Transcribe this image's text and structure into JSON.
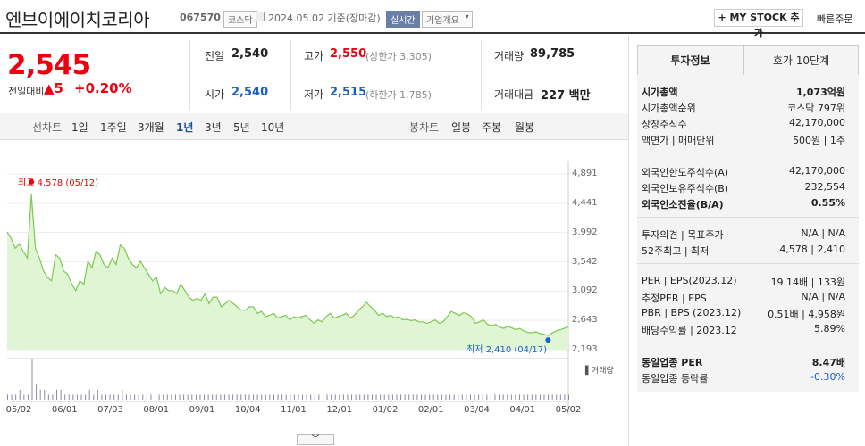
{
  "header": {
    "company": "엔브이에이치코리아",
    "code": "067570",
    "market_tag": "코스닥",
    "date_text": "2024.05.02  기준(장마감)",
    "realtime_tag": "실시간",
    "company_info_tag": "기업개요",
    "my_stock_button": "+ MY STOCK 추가",
    "quick_order": "빠른주문"
  },
  "quote": {
    "price": "2,545",
    "change_label": "전일대비",
    "change_amount": "5",
    "change_pct": "+0.20%",
    "prev_label": "전일",
    "prev_value": "2,540",
    "open_label": "시가",
    "open_value": "2,540",
    "high_label": "고가",
    "high_value": "2,550",
    "upper_limit": "(상한가 3,305)",
    "low_label": "저가",
    "low_value": "2,515",
    "lower_limit": "(하한가 1,785)",
    "volume_label": "거래량",
    "volume_value": "89,785",
    "amount_label": "거래대금",
    "amount_value": "227 백만"
  },
  "periods": {
    "line_label": "선차트",
    "line_items": [
      "1일",
      "1주일",
      "3개월",
      "1년",
      "3년",
      "5년",
      "10년"
    ],
    "active": "1년",
    "candle_label": "봉차트",
    "candle_items": [
      "일봉",
      "주봉",
      "월봉"
    ]
  },
  "chart_data": {
    "type": "area",
    "y_ticks": [
      "4,891",
      "4,441",
      "3,992",
      "3,542",
      "3,092",
      "2,643",
      "2,193"
    ],
    "ylim": [
      2193,
      4891
    ],
    "x_ticks": [
      "05/02",
      "06/01",
      "07/03",
      "08/01",
      "09/01",
      "10/04",
      "11/01",
      "12/01",
      "01/02",
      "02/01",
      "03/04",
      "04/01",
      "05/02"
    ],
    "series": [
      {
        "values": [
          4000,
          3900,
          3750,
          3820,
          3700,
          3600,
          4578,
          3750,
          3600,
          3400,
          3300,
          3250,
          3650,
          3600,
          3400,
          3350,
          3200,
          3100,
          3250,
          3200,
          3550,
          3450,
          3700,
          3650,
          3500,
          3450,
          3600,
          3500,
          3800,
          3750,
          3600,
          3500,
          3450,
          3550,
          3450,
          3350,
          3250,
          3300,
          3050,
          3150,
          3100,
          3100,
          3050,
          3200,
          3100,
          3000,
          2950,
          2980,
          2950,
          3050,
          2900,
          3000,
          3000,
          2850,
          2900,
          2950,
          2900,
          2850,
          2800,
          2800,
          2850,
          2850,
          2750,
          2780,
          2700,
          2720,
          2750,
          2680,
          2700,
          2720,
          2650,
          2700,
          2680,
          2700,
          2720,
          2650,
          2600,
          2650,
          2620,
          2700,
          2750,
          2680,
          2700,
          2720,
          2750,
          2680,
          2720,
          2800,
          2850,
          2920,
          2850,
          2800,
          2720,
          2750,
          2700,
          2720,
          2680,
          2700,
          2650,
          2660,
          2640,
          2650,
          2620,
          2620,
          2600,
          2620,
          2650,
          2600,
          2620,
          2700,
          2780,
          2750,
          2720,
          2760,
          2740,
          2700,
          2600,
          2620,
          2650,
          2580,
          2560,
          2580,
          2540,
          2520,
          2550,
          2530,
          2500,
          2520,
          2480,
          2460,
          2450,
          2470,
          2440,
          2430,
          2410,
          2450,
          2480,
          2500,
          2520,
          2545
        ]
      }
    ],
    "high_label": "최고 4,578 (05/12)",
    "low_label": "최저 2,410 (04/17)",
    "volume_legend": "거래량",
    "volume_bars": [
      1,
      1,
      1,
      2,
      1,
      1,
      8,
      3,
      2,
      2,
      1,
      1,
      2,
      2,
      1,
      1,
      1,
      1,
      1,
      1,
      2,
      1,
      2,
      1,
      1,
      1,
      1,
      1,
      2,
      1,
      1,
      1,
      1,
      1,
      1,
      1,
      1,
      1,
      1,
      1,
      1,
      1,
      1,
      1,
      1,
      1,
      1,
      1,
      1,
      1,
      1,
      1,
      1,
      1,
      1,
      1,
      1,
      1,
      1,
      1,
      1,
      1,
      1,
      1,
      1,
      1,
      1,
      1,
      1,
      1,
      1,
      1,
      1,
      1,
      1,
      1,
      1,
      1,
      1,
      1,
      1,
      1,
      1,
      1,
      1,
      1,
      1,
      1,
      1,
      1,
      1,
      1,
      1,
      1,
      1,
      1,
      1,
      1,
      1,
      1,
      1,
      1,
      1,
      1,
      1,
      1,
      1,
      1,
      1,
      1,
      1,
      1,
      1,
      1,
      1,
      1,
      1,
      1,
      1,
      1,
      1,
      1,
      1,
      1,
      1,
      1,
      1,
      1,
      1,
      1,
      1,
      1,
      1,
      1,
      1,
      1,
      1,
      1
    ]
  },
  "side": {
    "tab1": "투자정보",
    "tab2": "호가 10단계",
    "rows1": [
      {
        "label": "시가총액",
        "value": "1,073억원"
      },
      {
        "label": "시가총액순위",
        "value": "코스닥 797위"
      },
      {
        "label": "상장주식수",
        "value": "42,170,000"
      },
      {
        "label": "액면가 | 매매단위",
        "value": "500원 | 1주"
      }
    ],
    "rows2": [
      {
        "label": "외국인한도주식수(A)",
        "value": "42,170,000"
      },
      {
        "label": "외국인보유주식수(B)",
        "value": "232,554"
      },
      {
        "label": "외국인소진율(B/A)",
        "value": "0.55%"
      }
    ],
    "rows3": [
      {
        "label": "투자의견 | 목표주가",
        "value": "N/A | N/A"
      },
      {
        "label": "52주최고 | 최저",
        "value": "4,578 | 2,410"
      }
    ],
    "rows4": [
      {
        "label": "PER | EPS(2023.12)",
        "value": "19.14배 | 133원"
      },
      {
        "label": "추정PER | EPS",
        "value": "N/A | N/A"
      },
      {
        "label": "PBR | BPS (2023.12)",
        "value": "0.51배 | 4,958원"
      },
      {
        "label": "배당수익률 | 2023.12",
        "value": "5.89%"
      }
    ],
    "rows5": [
      {
        "label": "동일업종 PER",
        "value": "8.47배"
      },
      {
        "label": "동일업종 등락률",
        "value": "-0.30%"
      }
    ]
  }
}
